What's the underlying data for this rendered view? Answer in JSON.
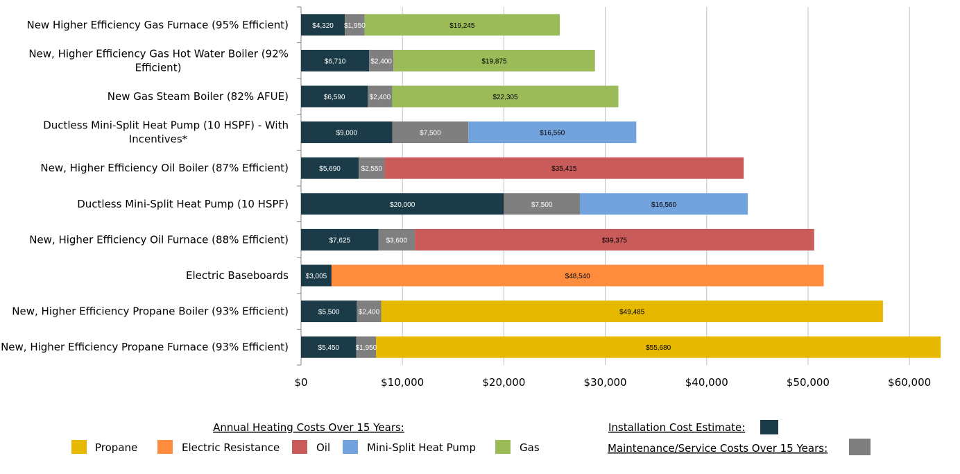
{
  "colors": {
    "installation": "#1a3b47",
    "maintenance": "#7f7f7f",
    "Propane": "#e6b800",
    "Electric Resistance": "#ff8c3c",
    "Oil": "#c95b5b",
    "Mini-Split Heat Pump": "#73a3dc",
    "Gas": "#9bbb59",
    "grid": "#bfbfbf"
  },
  "chart_data": {
    "type": "bar",
    "orientation": "horizontal",
    "stacked": true,
    "xlim": [
      0,
      63000
    ],
    "xticks": [
      0,
      10000,
      20000,
      30000,
      40000,
      50000,
      60000
    ],
    "xtick_labels": [
      "$0",
      "$10,000",
      "$20,000",
      "$30,000",
      "$40,000",
      "$50,000",
      "$60,000"
    ],
    "grid": true,
    "categories": [
      "New Higher Efficiency Gas Furnace (95% Efficient)",
      "New, Higher Efficiency Gas Hot Water Boiler (92% Efficient)",
      "New Gas Steam Boiler (82% AFUE)",
      "Ductless Mini-Split Heat Pump (10 HSPF) - With Incentives*",
      "New, Higher Efficiency Oil Boiler (87% Efficient)",
      "Ductless Mini-Split Heat Pump (10 HSPF)",
      "New, Higher Efficiency Oil Furnace (88% Efficient)",
      "Electric Baseboards",
      "New, Higher Efficiency Propane Boiler (93% Efficient)",
      "New, Higher Efficiency Propane Furnace (93% Efficient)"
    ],
    "category_lines": [
      [
        "New Higher Efficiency Gas Furnace (95% Efficient)"
      ],
      [
        "New, Higher Efficiency Gas Hot Water Boiler (92%",
        "Efficient)"
      ],
      [
        "New Gas Steam Boiler (82% AFUE)"
      ],
      [
        "Ductless Mini-Split Heat Pump (10 HSPF) - With",
        "Incentives*"
      ],
      [
        "New, Higher Efficiency Oil Boiler (87% Efficient)"
      ],
      [
        "Ductless Mini-Split Heat Pump (10 HSPF)"
      ],
      [
        "New, Higher Efficiency Oil Furnace (88% Efficient)"
      ],
      [
        "Electric Baseboards"
      ],
      [
        "New, Higher Efficiency Propane Boiler (93% Efficient)"
      ],
      [
        "New, Higher Efficiency Propane Furnace (93% Efficient)"
      ]
    ],
    "series": [
      {
        "name": "Installation Cost Estimate",
        "values": [
          4320,
          6710,
          6590,
          9000,
          5690,
          20000,
          7625,
          3005,
          5500,
          5450
        ]
      },
      {
        "name": "Maintenance/Service Costs Over 15 Years",
        "values": [
          1950,
          2400,
          2400,
          7500,
          2550,
          7500,
          3600,
          0,
          2400,
          1950
        ]
      },
      {
        "name": "Annual Heating Costs Over 15 Years",
        "values": [
          19245,
          19875,
          22305,
          16560,
          35415,
          16560,
          39375,
          48540,
          49485,
          55680
        ],
        "fuels": [
          "Gas",
          "Gas",
          "Gas",
          "Mini-Split Heat Pump",
          "Oil",
          "Mini-Split Heat Pump",
          "Oil",
          "Electric Resistance",
          "Propane",
          "Propane"
        ]
      }
    ],
    "data_labels": [
      [
        "$4,320",
        "$1,950",
        "$19,245"
      ],
      [
        "$6,710",
        "$2,400",
        "$19,875"
      ],
      [
        "$6,590",
        "$2,400",
        "$22,305"
      ],
      [
        "$9,000",
        "$7,500",
        "$16,560"
      ],
      [
        "$5,690",
        "$2,550",
        "$35,415"
      ],
      [
        "$20,000",
        "$7,500",
        "$16,560"
      ],
      [
        "$7,625",
        "$3,600",
        "$39,375"
      ],
      [
        "$3,005",
        "",
        "$48,540"
      ],
      [
        "$5,500",
        "$2,400",
        "$49,485"
      ],
      [
        "$5,450",
        "$1,950",
        "$55,680"
      ]
    ],
    "legend": {
      "fuel_title": "Annual Heating Costs Over 15 Years:",
      "fuel_entries": [
        "Propane",
        "Electric Resistance",
        "Oil",
        "Mini-Split Heat Pump",
        "Gas"
      ],
      "installation_label": "Installation Cost Estimate:",
      "maintenance_label": "Maintenance/Service Costs Over 15 Years:"
    }
  }
}
